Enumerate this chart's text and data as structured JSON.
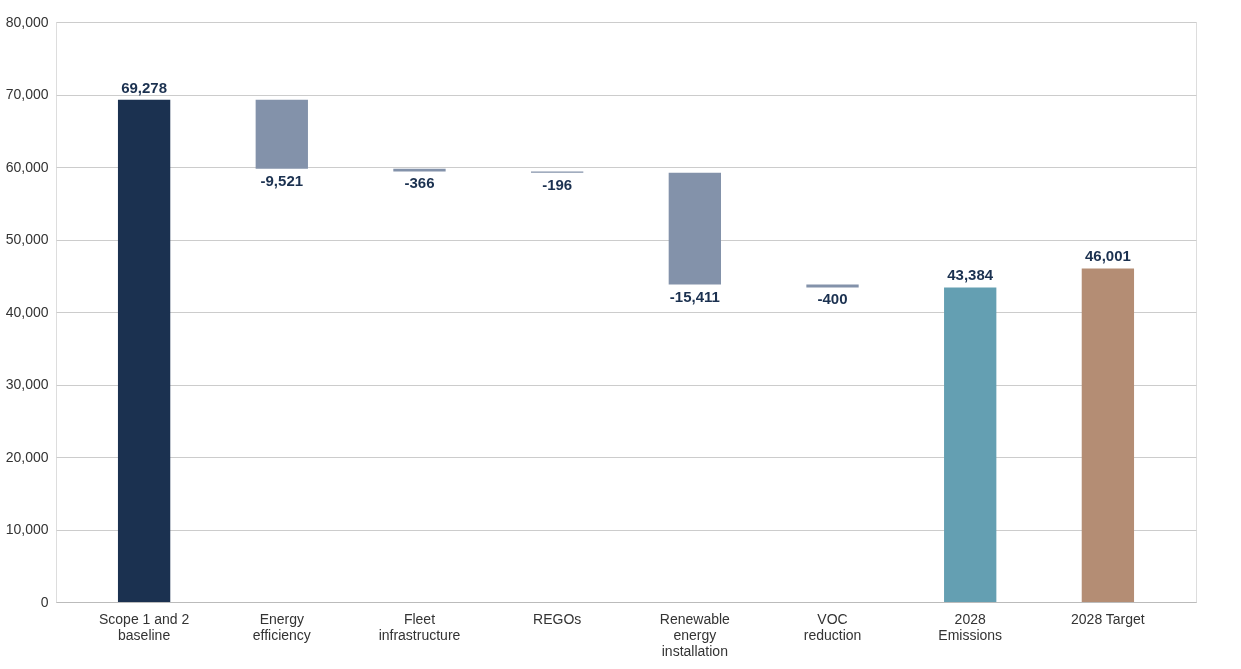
{
  "chart_data": {
    "type": "bar",
    "categories": [
      "Scope 1 and 2 baseline",
      "Energy efficiency",
      "Fleet infrastructure",
      "REGOs",
      "Renewable energy installation",
      "VOC reduction",
      "2028 Emissions",
      "2028 Target"
    ],
    "values": [
      69278,
      -9521,
      -366,
      -196,
      -15411,
      -400,
      43384,
      46001
    ],
    "base": [
      0,
      69278,
      59757,
      59391,
      59195,
      43784,
      0,
      0
    ],
    "colors": [
      "#1b3150",
      "#8392aa",
      "#8392aa",
      "#8392aa",
      "#8392aa",
      "#8392aa",
      "#649fb2",
      "#b48d74"
    ],
    "value_labels": [
      "69,278",
      "-9,521",
      "-366",
      "-196",
      "-15,411",
      "-400",
      "43,384",
      "46,001"
    ],
    "ylim": [
      0,
      80000
    ],
    "yticks": [
      0,
      {
        "value": 10000,
        "label": "10,000"
      },
      {
        "value": 20000,
        "label": "20,000"
      },
      {
        "value": 30000,
        "label": "30,000"
      },
      {
        "value": 40000,
        "label": "40,000"
      },
      {
        "value": 50000,
        "label": "50,000"
      },
      {
        "value": 60000,
        "label": "60,000"
      },
      {
        "value": 70000,
        "label": "70,000"
      },
      {
        "value": 80000,
        "label": "80,000"
      }
    ],
    "grid": "y"
  }
}
